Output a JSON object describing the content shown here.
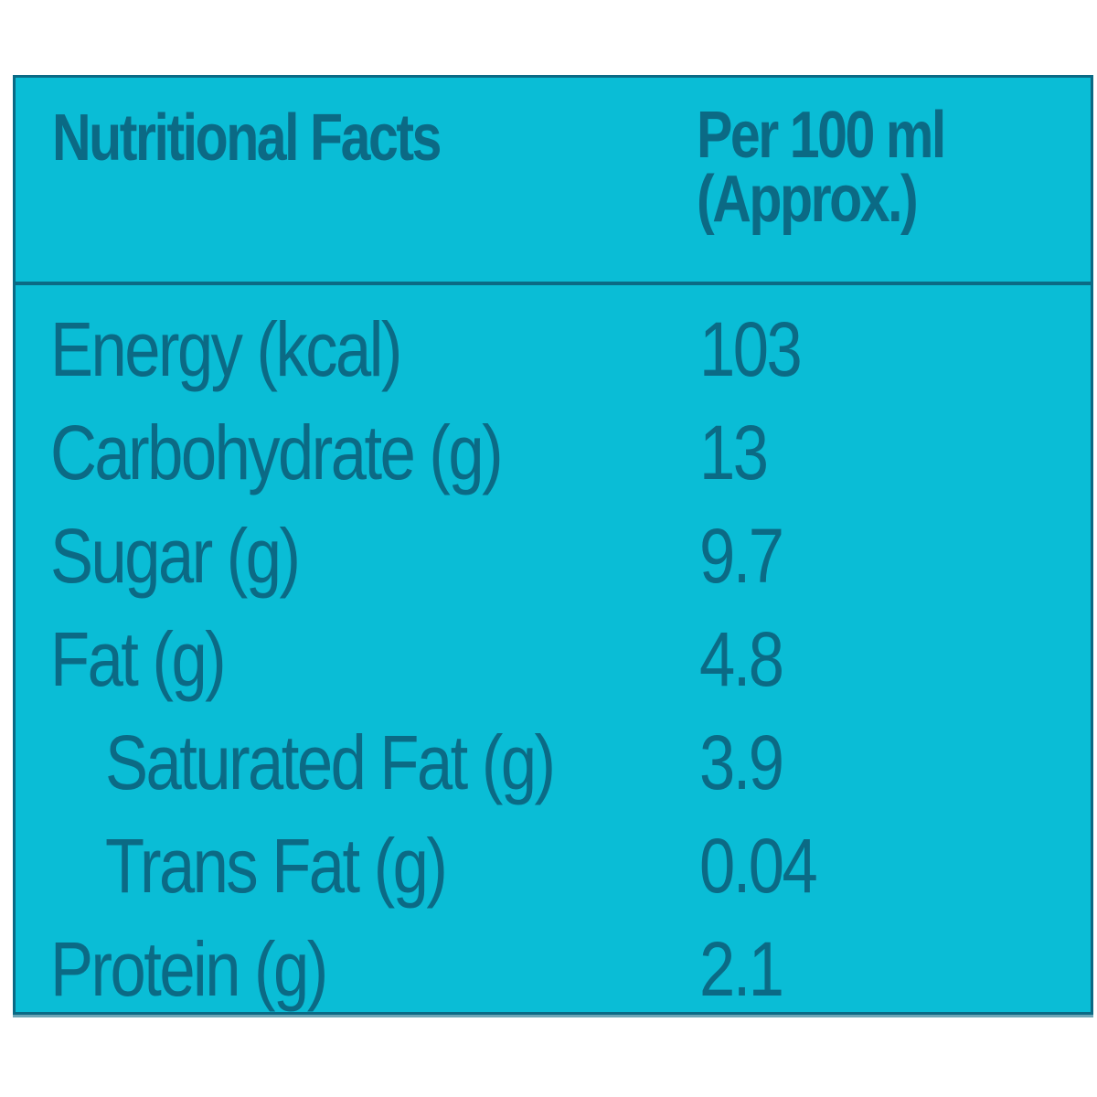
{
  "colors": {
    "panel_background": "#0abdd6",
    "text_and_border": "#0b6a85",
    "page_background": "#ffffff"
  },
  "header": {
    "title": "Nutritional Facts",
    "column_line1": "Per 100 ml",
    "column_line2": "(Approx.)"
  },
  "rows": [
    {
      "label": "Energy (kcal)",
      "value": "103",
      "indent": false
    },
    {
      "label": "Carbohydrate (g)",
      "value": "13",
      "indent": false
    },
    {
      "label": "Sugar (g)",
      "value": "9.7",
      "indent": false
    },
    {
      "label": "Fat (g)",
      "value": "4.8",
      "indent": false
    },
    {
      "label": "Saturated Fat (g)",
      "value": "3.9",
      "indent": true
    },
    {
      "label": "Trans Fat (g)",
      "value": "0.04",
      "indent": true
    },
    {
      "label": "Protein (g)",
      "value": "2.1",
      "indent": false
    }
  ]
}
